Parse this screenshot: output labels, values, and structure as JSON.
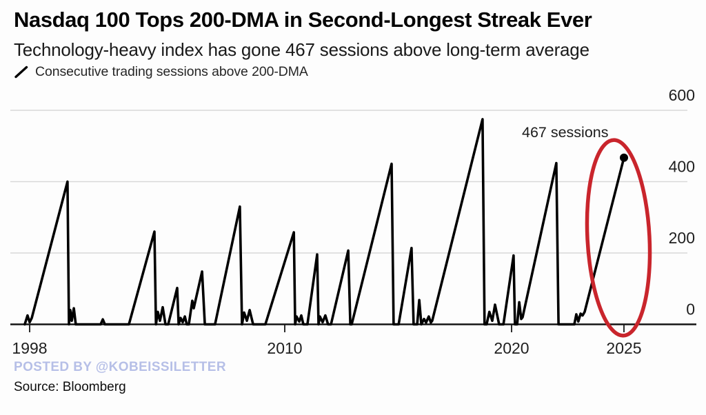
{
  "header": {
    "title": "Nasdaq 100 Tops 200-DMA in Second-Longest Streak Ever",
    "subtitle": "Technology-heavy index has gone 467 sessions above long-term average"
  },
  "legend": {
    "label": "Consecutive trading sessions above 200-DMA"
  },
  "annotation": {
    "label": "467 sessions"
  },
  "footer": {
    "posted_by": "POSTED BY @KOBEISSILETTER",
    "source": "Source: Bloomberg"
  },
  "colors": {
    "line": "#000000",
    "grid": "#d8d8d8",
    "axis": "#151515",
    "tick_text": "#1f1f1f",
    "highlight_red": "#c9252c",
    "posted_by_blue": "#b6bfe7"
  },
  "chart_data": {
    "type": "line",
    "title": "Nasdaq 100 Tops 200-DMA in Second-Longest Streak Ever",
    "ylabel": "Consecutive trading sessions above 200-DMA",
    "grid": "horizontal",
    "y_axis": {
      "side": "right",
      "ticks": [
        0,
        200,
        400,
        600
      ],
      "tick_labels": [
        "0",
        "200",
        "400",
        "600"
      ],
      "range": [
        0,
        610
      ]
    },
    "x_axis": {
      "ticks": [
        1998,
        2010,
        2020,
        2025
      ],
      "tick_labels": [
        "1998",
        "2010",
        "2020",
        "2025"
      ],
      "range": [
        1997.7,
        2025.8
      ]
    },
    "end_marker": {
      "year": 2025.0,
      "value": 467,
      "dot": true,
      "label": "467 sessions"
    },
    "highlight": {
      "shape": "hand-drawn-ellipse",
      "around": "current 2023-2025 streak",
      "color": "#c9252c"
    },
    "series": [
      {
        "name": "Consecutive trading sessions above 200-DMA",
        "points": [
          [
            1997.77,
            0
          ],
          [
            1997.9,
            25
          ],
          [
            1998.0,
            6
          ],
          [
            1998.1,
            18
          ],
          [
            1999.78,
            400
          ],
          [
            1999.85,
            0
          ],
          [
            1999.91,
            40
          ],
          [
            1999.98,
            10
          ],
          [
            2000.08,
            45
          ],
          [
            2000.17,
            0
          ],
          [
            2001.34,
            0
          ],
          [
            2001.44,
            14
          ],
          [
            2001.54,
            0
          ],
          [
            2002.67,
            0
          ],
          [
            2003.87,
            260
          ],
          [
            2003.94,
            0
          ],
          [
            2004.03,
            35
          ],
          [
            2004.13,
            10
          ],
          [
            2004.26,
            48
          ],
          [
            2004.39,
            0
          ],
          [
            2004.52,
            0
          ],
          [
            2004.94,
            102
          ],
          [
            2005.01,
            0
          ],
          [
            2005.1,
            18
          ],
          [
            2005.2,
            6
          ],
          [
            2005.3,
            22
          ],
          [
            2005.39,
            0
          ],
          [
            2005.49,
            0
          ],
          [
            2005.65,
            66
          ],
          [
            2005.72,
            45
          ],
          [
            2006.11,
            148
          ],
          [
            2006.24,
            0
          ],
          [
            2006.72,
            0
          ],
          [
            2007.89,
            330
          ],
          [
            2007.99,
            0
          ],
          [
            2008.09,
            33
          ],
          [
            2008.22,
            10
          ],
          [
            2008.35,
            40
          ],
          [
            2008.51,
            0
          ],
          [
            2009.09,
            0
          ],
          [
            2010.4,
            258
          ],
          [
            2010.46,
            0
          ],
          [
            2010.52,
            22
          ],
          [
            2010.64,
            8
          ],
          [
            2010.73,
            25
          ],
          [
            2010.82,
            0
          ],
          [
            2011.0,
            0
          ],
          [
            2011.43,
            196
          ],
          [
            2011.49,
            0
          ],
          [
            2011.55,
            22
          ],
          [
            2011.67,
            6
          ],
          [
            2011.79,
            25
          ],
          [
            2011.91,
            0
          ],
          [
            2012.04,
            0
          ],
          [
            2012.8,
            207
          ],
          [
            2012.89,
            0
          ],
          [
            2012.95,
            0
          ],
          [
            2014.71,
            450
          ],
          [
            2014.8,
            0
          ],
          [
            2015.02,
            0
          ],
          [
            2015.59,
            214
          ],
          [
            2015.68,
            0
          ],
          [
            2015.84,
            0
          ],
          [
            2015.93,
            68
          ],
          [
            2016.02,
            0
          ],
          [
            2016.14,
            15
          ],
          [
            2016.23,
            5
          ],
          [
            2016.35,
            22
          ],
          [
            2016.44,
            5
          ],
          [
            2016.5,
            10
          ],
          [
            2018.72,
            575
          ],
          [
            2018.81,
            0
          ],
          [
            2018.9,
            0
          ],
          [
            2019.02,
            35
          ],
          [
            2019.15,
            10
          ],
          [
            2019.27,
            55
          ],
          [
            2019.45,
            0
          ],
          [
            2019.64,
            0
          ],
          [
            2020.09,
            193
          ],
          [
            2020.15,
            0
          ],
          [
            2020.25,
            0
          ],
          [
            2020.34,
            62
          ],
          [
            2020.43,
            15
          ],
          [
            2020.49,
            20
          ],
          [
            2021.99,
            452
          ],
          [
            2022.09,
            0
          ],
          [
            2022.79,
            0
          ],
          [
            2022.88,
            28
          ],
          [
            2022.97,
            8
          ],
          [
            2023.07,
            30
          ],
          [
            2023.16,
            25
          ],
          [
            2023.25,
            35
          ],
          [
            2025.0,
            467
          ]
        ]
      }
    ]
  }
}
